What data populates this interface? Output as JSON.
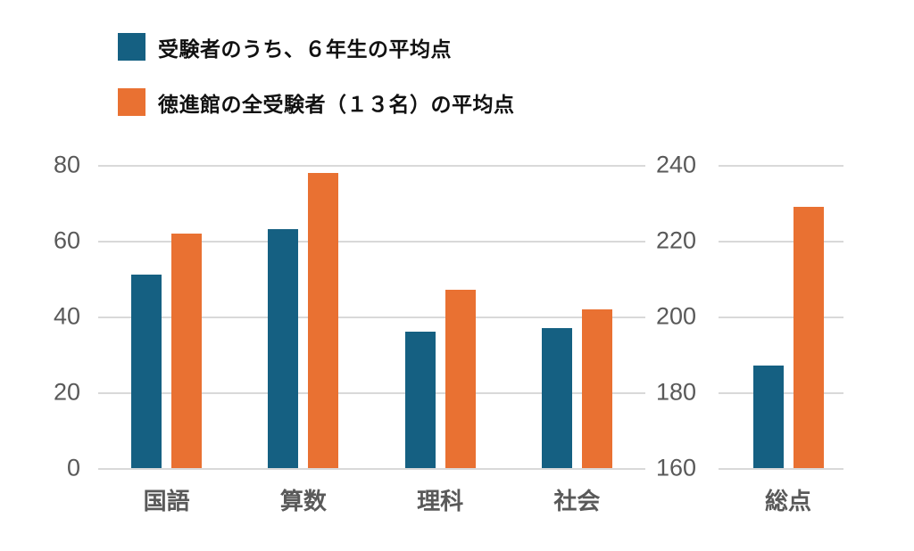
{
  "legend": {
    "items": [
      {
        "label": "受験者のうち、６年生の平均点",
        "color": "#156082"
      },
      {
        "label": "徳進館の全受験者（１３名）の平均点",
        "color": "#E97132"
      }
    ]
  },
  "colors": {
    "series_blue": "#156082",
    "series_orange": "#E97132",
    "gridline": "#d9d9d9",
    "axis_text": "#595959",
    "legend_text": "#111111",
    "background": "#ffffff"
  },
  "chart_data": [
    {
      "type": "bar",
      "title": "",
      "categories": [
        "国語",
        "算数",
        "理科",
        "社会"
      ],
      "series": [
        {
          "name": "受験者のうち、６年生の平均点",
          "color": "#156082",
          "values": [
            51,
            63,
            36,
            37
          ]
        },
        {
          "name": "徳進館の全受験者（１３名）の平均点",
          "color": "#E97132",
          "values": [
            62,
            78,
            47,
            42
          ]
        }
      ],
      "xlabel": "",
      "ylabel": "",
      "ylim": [
        0,
        80
      ],
      "yticks": [
        0,
        20,
        40,
        60,
        80
      ],
      "grid": true,
      "legend_position": "top-left"
    },
    {
      "type": "bar",
      "title": "",
      "categories": [
        "総点"
      ],
      "series": [
        {
          "name": "受験者のうち、６年生の平均点",
          "color": "#156082",
          "values": [
            187
          ]
        },
        {
          "name": "徳進館の全受験者（１３名）の平均点",
          "color": "#E97132",
          "values": [
            229
          ]
        }
      ],
      "xlabel": "",
      "ylabel": "",
      "ylim": [
        160,
        240
      ],
      "yticks": [
        160,
        180,
        200,
        220,
        240
      ],
      "grid": true,
      "legend_position": "none"
    }
  ]
}
